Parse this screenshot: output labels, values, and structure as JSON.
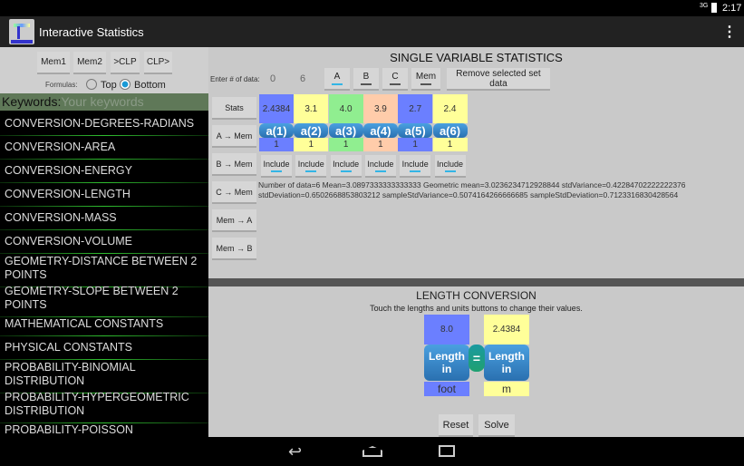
{
  "status_bar": {
    "time": "2:17",
    "signal": "3G"
  },
  "app": {
    "title": "Interactive Statistics",
    "menu_icon": "overflow-menu-icon"
  },
  "left": {
    "buttons": [
      "Mem1",
      "Mem2",
      ">CLP",
      "CLP>"
    ],
    "formulas_label": "Formulas:",
    "radio_top": "Top",
    "radio_bottom": "Bottom",
    "selected": "Bottom",
    "keywords_label": "Keywords:",
    "keywords_placeholder": "Your keywords",
    "items": [
      "CONVERSION-DEGREES-RADIANS",
      "CONVERSION-AREA",
      "CONVERSION-ENERGY",
      "CONVERSION-LENGTH",
      "CONVERSION-MASS",
      "CONVERSION-VOLUME",
      "GEOMETRY-DISTANCE BETWEEN 2 POINTS",
      "GEOMETRY-SLOPE BETWEEN 2 POINTS",
      "MATHEMATICAL CONSTANTS",
      "PHYSICAL CONSTANTS",
      "PROBABILITY-BINOMIAL DISTRIBUTION",
      "PROBABILITY-HYPERGEOMETRIC DISTRIBUTION",
      "PROBABILITY-POISSON DISTRIBUTION"
    ]
  },
  "stats": {
    "title": "SINGLE VARIABLE STATISTICS",
    "enter_label": "Enter # of data:",
    "field1": "0",
    "field2": "6",
    "set_buttons": [
      "A",
      "B",
      "C",
      "Mem"
    ],
    "remove_label": "Remove selected set data",
    "side_buttons": [
      "Stats",
      "A → Mem",
      "B → Mem",
      "C → Mem",
      "Mem → A",
      "Mem → B"
    ],
    "values": [
      "2.4384",
      "3.1",
      "4.0",
      "3.9",
      "2.7",
      "2.4"
    ],
    "labels": [
      "a(1)",
      "a(2)",
      "a(3)",
      "a(4)",
      "a(5)",
      "a(6)"
    ],
    "weights": [
      "1",
      "1",
      "1",
      "1",
      "1",
      "1"
    ],
    "cell_colors": [
      "#6b7fff",
      "#ffff99",
      "#90ee90",
      "#ffccaa",
      "#6b7fff",
      "#ffff99"
    ],
    "include_label": "Include",
    "result_line1": "Number of data=6     Mean=3.0897333333333333     Geometric mean=3.0236234712928844     stdVariance=0.42284702222222376",
    "result_line2": "stdDeviation=0.6502668853803212     sampleStdVariance=0.5074164266666685     sampleStdDeviation=0.7123316830428564"
  },
  "conversion": {
    "title": "LENGTH CONVERSION",
    "subtitle": "Touch the lengths and units buttons to change their values.",
    "left_value": "8.0",
    "right_value": "2.4384",
    "left_button": "Length in",
    "right_button": "Length in",
    "equals": "=",
    "left_unit": "foot",
    "right_unit": "m",
    "reset": "Reset",
    "solve": "Solve"
  }
}
